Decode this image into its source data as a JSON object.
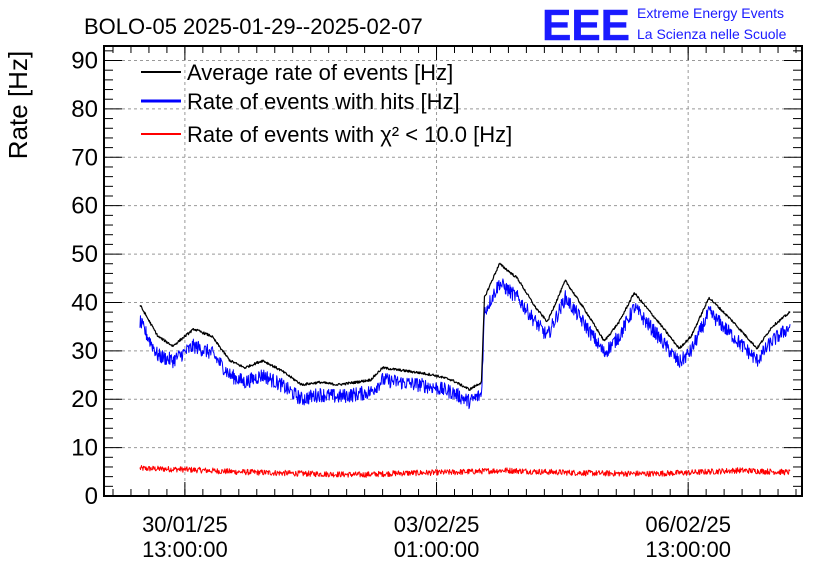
{
  "title": "BOLO-05 2025-01-29--2025-02-07",
  "logo": {
    "mark": "EEE",
    "line1": "Extreme Energy Events",
    "line2": "La Scienza nelle Scuole",
    "color": "#1a1aff"
  },
  "chart_data": {
    "type": "line",
    "title": "BOLO-05 2025-01-29--2025-02-07",
    "ylabel": "Rate [Hz]",
    "xlabel": "",
    "ylim": [
      0,
      93
    ],
    "x_range": [
      "2025-01-29T10:00:00",
      "2025-02-08T03:00:00"
    ],
    "y_ticks": [
      "0",
      "10",
      "20",
      "30",
      "40",
      "50",
      "60",
      "70",
      "80",
      "90"
    ],
    "x_ticks": [
      {
        "t": "2025-01-30T13:00:00",
        "date": "30/01/25",
        "time": "13:00:00"
      },
      {
        "t": "2025-02-03T01:00:00",
        "date": "03/02/25",
        "time": "01:00:00"
      },
      {
        "t": "2025-02-06T13:00:00",
        "date": "06/02/25",
        "time": "13:00:00"
      }
    ],
    "grid": true,
    "legend_position": "top-left",
    "series": [
      {
        "name": "Average rate of events [Hz]",
        "color": "#000000",
        "noise": 0.25,
        "points": [
          [
            "2025-01-29T22:00:00",
            39.5
          ],
          [
            "2025-01-30T04:00:00",
            33
          ],
          [
            "2025-01-30T09:00:00",
            31
          ],
          [
            "2025-01-30T16:00:00",
            34.5
          ],
          [
            "2025-01-30T22:00:00",
            33
          ],
          [
            "2025-01-31T04:00:00",
            28
          ],
          [
            "2025-01-31T09:00:00",
            26.5
          ],
          [
            "2025-01-31T15:00:00",
            28
          ],
          [
            "2025-01-31T21:00:00",
            26
          ],
          [
            "2025-02-01T04:00:00",
            23
          ],
          [
            "2025-02-01T10:00:00",
            23.5
          ],
          [
            "2025-02-01T16:00:00",
            23
          ],
          [
            "2025-02-01T22:00:00",
            23.5
          ],
          [
            "2025-02-02T03:00:00",
            24
          ],
          [
            "2025-02-02T07:00:00",
            26.5
          ],
          [
            "2025-02-02T13:00:00",
            26
          ],
          [
            "2025-02-02T19:00:00",
            25.5
          ],
          [
            "2025-02-03T00:00:00",
            25
          ],
          [
            "2025-02-03T06:00:00",
            24
          ],
          [
            "2025-02-03T12:00:00",
            22
          ],
          [
            "2025-02-03T16:00:00",
            23.5
          ],
          [
            "2025-02-03T17:00:00",
            41
          ],
          [
            "2025-02-03T22:00:00",
            48
          ],
          [
            "2025-02-04T04:00:00",
            45
          ],
          [
            "2025-02-04T10:00:00",
            39
          ],
          [
            "2025-02-04T14:00:00",
            36
          ],
          [
            "2025-02-04T20:00:00",
            44.5
          ],
          [
            "2025-02-05T03:00:00",
            38
          ],
          [
            "2025-02-05T09:00:00",
            32
          ],
          [
            "2025-02-05T14:00:00",
            36
          ],
          [
            "2025-02-05T19:00:00",
            42
          ],
          [
            "2025-02-06T03:00:00",
            36
          ],
          [
            "2025-02-06T10:00:00",
            30.5
          ],
          [
            "2025-02-06T14:00:00",
            33
          ],
          [
            "2025-02-06T20:00:00",
            41
          ],
          [
            "2025-02-07T04:00:00",
            36
          ],
          [
            "2025-02-07T12:00:00",
            30.5
          ],
          [
            "2025-02-07T17:00:00",
            35
          ],
          [
            "2025-02-07T23:00:00",
            38
          ]
        ]
      },
      {
        "name": "Rate of events with hits [Hz]",
        "color": "#0000ff",
        "noise": 1.5,
        "points": [
          [
            "2025-01-29T22:00:00",
            36
          ],
          [
            "2025-01-30T04:00:00",
            29
          ],
          [
            "2025-01-30T09:00:00",
            28
          ],
          [
            "2025-01-30T16:00:00",
            31
          ],
          [
            "2025-01-30T22:00:00",
            29.5
          ],
          [
            "2025-01-31T04:00:00",
            25
          ],
          [
            "2025-01-31T09:00:00",
            23.5
          ],
          [
            "2025-01-31T15:00:00",
            25
          ],
          [
            "2025-01-31T21:00:00",
            23
          ],
          [
            "2025-02-01T04:00:00",
            20
          ],
          [
            "2025-02-01T10:00:00",
            21
          ],
          [
            "2025-02-01T16:00:00",
            20.5
          ],
          [
            "2025-02-01T22:00:00",
            21
          ],
          [
            "2025-02-02T03:00:00",
            21.5
          ],
          [
            "2025-02-02T07:00:00",
            24
          ],
          [
            "2025-02-02T13:00:00",
            23.5
          ],
          [
            "2025-02-02T19:00:00",
            23
          ],
          [
            "2025-02-03T00:00:00",
            22.5
          ],
          [
            "2025-02-03T06:00:00",
            21.5
          ],
          [
            "2025-02-03T12:00:00",
            19.5
          ],
          [
            "2025-02-03T16:00:00",
            21
          ],
          [
            "2025-02-03T17:00:00",
            38
          ],
          [
            "2025-02-03T22:00:00",
            44
          ],
          [
            "2025-02-04T04:00:00",
            41
          ],
          [
            "2025-02-04T10:00:00",
            36
          ],
          [
            "2025-02-04T14:00:00",
            33
          ],
          [
            "2025-02-04T20:00:00",
            41
          ],
          [
            "2025-02-05T03:00:00",
            35
          ],
          [
            "2025-02-05T09:00:00",
            29.5
          ],
          [
            "2025-02-05T14:00:00",
            33
          ],
          [
            "2025-02-05T19:00:00",
            39
          ],
          [
            "2025-02-06T03:00:00",
            33
          ],
          [
            "2025-02-06T10:00:00",
            27.5
          ],
          [
            "2025-02-06T14:00:00",
            30
          ],
          [
            "2025-02-06T20:00:00",
            38
          ],
          [
            "2025-02-07T04:00:00",
            33
          ],
          [
            "2025-02-07T12:00:00",
            28
          ],
          [
            "2025-02-07T17:00:00",
            32
          ],
          [
            "2025-02-07T23:00:00",
            35
          ]
        ]
      },
      {
        "name": "Rate of events with χ² < 10.0 [Hz]",
        "color": "#ff0000",
        "noise": 0.6,
        "points": [
          [
            "2025-01-29T22:00:00",
            5.7
          ],
          [
            "2025-01-30T12:00:00",
            5.5
          ],
          [
            "2025-01-31T06:00:00",
            5.0
          ],
          [
            "2025-02-01T06:00:00",
            4.6
          ],
          [
            "2025-02-02T00:00:00",
            4.4
          ],
          [
            "2025-02-02T12:00:00",
            4.7
          ],
          [
            "2025-02-03T06:00:00",
            4.9
          ],
          [
            "2025-02-04T00:00:00",
            5.3
          ],
          [
            "2025-02-04T12:00:00",
            5.0
          ],
          [
            "2025-02-05T06:00:00",
            4.7
          ],
          [
            "2025-02-06T00:00:00",
            4.6
          ],
          [
            "2025-02-06T12:00:00",
            4.8
          ],
          [
            "2025-02-07T06:00:00",
            5.3
          ],
          [
            "2025-02-07T23:00:00",
            4.9
          ]
        ]
      }
    ]
  }
}
